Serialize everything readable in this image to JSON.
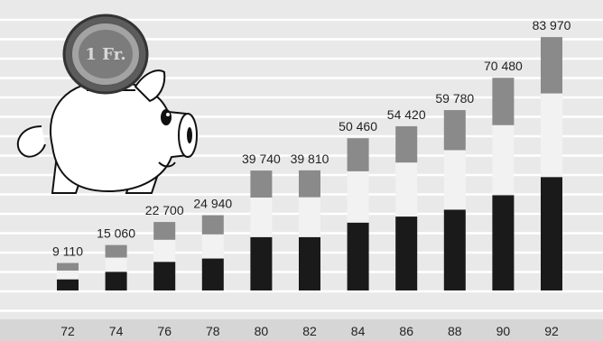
{
  "chart_data": {
    "type": "bar",
    "stacked": true,
    "categories": [
      "72",
      "74",
      "76",
      "78",
      "80",
      "82",
      "84",
      "86",
      "88",
      "90",
      "92"
    ],
    "totals": [
      9110,
      15060,
      22700,
      24940,
      39740,
      39810,
      50460,
      54420,
      59780,
      70480,
      83970
    ],
    "total_labels": [
      "9 110",
      "15 060",
      "22 700",
      "24 940",
      "39 740",
      "39 810",
      "50 460",
      "54 420",
      "59 780",
      "70 480",
      "83 970"
    ],
    "series": [
      {
        "values": [
          3700,
          6200,
          9500,
          10600,
          17700,
          17700,
          22500,
          24500,
          26800,
          31600,
          37600
        ]
      },
      {
        "values": [
          2900,
          4700,
          7300,
          8000,
          13100,
          13200,
          17000,
          17900,
          19700,
          23200,
          27700
        ]
      },
      {
        "values": [
          2510,
          4160,
          5900,
          6340,
          8940,
          8910,
          10960,
          12020,
          13280,
          15680,
          18670
        ]
      }
    ],
    "ylim": [
      0,
      90000
    ],
    "grid": true,
    "colors": {
      "background": "#e9e9e9",
      "grid": "#ffffff",
      "bottom_segment": "#1a1a1a",
      "middle_segment": "#f2f2f2",
      "top_segment": "#8a8a8a",
      "label_band": "#d6d6d6",
      "text": "#222222"
    }
  },
  "illustration": {
    "name": "piggy-bank-with-coin",
    "coin_text": "1 Fr."
  }
}
